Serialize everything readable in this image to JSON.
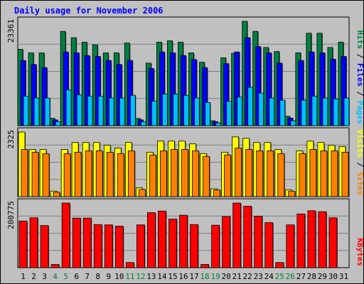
{
  "chart_data": [
    {
      "type": "bar",
      "title": "Daily usage for November 2006",
      "categories": [
        "1",
        "2",
        "3",
        "4",
        "5",
        "6",
        "7",
        "8",
        "9",
        "10",
        "11",
        "12",
        "13",
        "14",
        "15",
        "16",
        "17",
        "18",
        "19",
        "20",
        "21",
        "22",
        "23",
        "24",
        "25",
        "26",
        "27",
        "28",
        "29",
        "30",
        "31"
      ],
      "weekend_days": [
        "4",
        "5",
        "11",
        "12",
        "18",
        "19",
        "25",
        "26"
      ],
      "ylabel_right": [
        "Pages",
        "Files",
        "Hits"
      ],
      "ymax_label": "23361",
      "ylim": [
        0,
        23361
      ],
      "grid": true,
      "series": [
        {
          "name": "Hits",
          "color": "#008040",
          "values": [
            17100,
            16300,
            16300,
            1650,
            21100,
            19700,
            18700,
            18100,
            16300,
            16300,
            18500,
            1600,
            14000,
            18700,
            19000,
            18700,
            16300,
            14200,
            1100,
            15200,
            16200,
            23361,
            21100,
            17500,
            16600,
            2100,
            16300,
            20700,
            20700,
            17500,
            18700
          ]
        },
        {
          "name": "Files",
          "color": "#0000ff",
          "values": [
            14600,
            13700,
            13000,
            1300,
            16500,
            16300,
            15700,
            15500,
            14600,
            13700,
            14600,
            1300,
            12800,
            16500,
            16300,
            15700,
            14800,
            13000,
            900,
            13900,
            16500,
            19700,
            17700,
            16300,
            14000,
            1700,
            14600,
            16500,
            16300,
            14900,
            15500
          ]
        },
        {
          "name": "Pages",
          "color": "#00c0ff",
          "values": [
            6600,
            6200,
            6200,
            900,
            8000,
            6900,
            6600,
            6600,
            6200,
            6200,
            6800,
            900,
            5500,
            7100,
            7100,
            6800,
            6200,
            5200,
            600,
            5500,
            6400,
            8600,
            7300,
            6200,
            5700,
            1100,
            5700,
            6600,
            6200,
            6000,
            6200
          ]
        }
      ]
    },
    {
      "type": "bar",
      "categories": [
        "1",
        "2",
        "3",
        "4",
        "5",
        "6",
        "7",
        "8",
        "9",
        "10",
        "11",
        "12",
        "13",
        "14",
        "15",
        "16",
        "17",
        "18",
        "19",
        "20",
        "21",
        "22",
        "23",
        "24",
        "25",
        "26",
        "27",
        "28",
        "29",
        "30",
        "31"
      ],
      "ylabel_right": [
        "Sites",
        "Visits"
      ],
      "ymax_label": "2325",
      "ylim": [
        0,
        2325
      ],
      "grid": true,
      "series": [
        {
          "name": "Visits",
          "color": "#ffff00",
          "values": [
            2325,
            1700,
            1700,
            200,
            1700,
            1950,
            1950,
            1950,
            1850,
            1750,
            1950,
            320,
            1600,
            2000,
            2000,
            2000,
            1900,
            1550,
            280,
            1600,
            2150,
            2100,
            1950,
            1950,
            1700,
            250,
            1650,
            2000,
            1950,
            1850,
            1800
          ]
        },
        {
          "name": "Sites",
          "color": "#ff8000",
          "values": [
            1700,
            1600,
            1550,
            160,
            1550,
            1600,
            1650,
            1650,
            1600,
            1550,
            1650,
            260,
            1500,
            1650,
            1700,
            1700,
            1650,
            1450,
            240,
            1500,
            1750,
            1700,
            1650,
            1650,
            1550,
            200,
            1550,
            1700,
            1650,
            1650,
            1600
          ]
        }
      ]
    },
    {
      "type": "bar",
      "categories": [
        "1",
        "2",
        "3",
        "4",
        "5",
        "6",
        "7",
        "8",
        "9",
        "10",
        "11",
        "12",
        "13",
        "14",
        "15",
        "16",
        "17",
        "18",
        "19",
        "20",
        "21",
        "22",
        "23",
        "24",
        "25",
        "26",
        "27",
        "28",
        "29",
        "30",
        "31"
      ],
      "ylabel_right": [
        "KBytes"
      ],
      "ymax_label": "200775",
      "ylim": [
        0,
        200775
      ],
      "grid": true,
      "series": [
        {
          "name": "KBytes",
          "color": "#ff0000",
          "values": [
            145000,
            155000,
            131000,
            10000,
            200775,
            154000,
            154000,
            134000,
            133000,
            129000,
            16000,
            133000,
            171000,
            176000,
            151000,
            163000,
            134000,
            10000,
            132000,
            159000,
            200775,
            191000,
            160000,
            140000,
            16000,
            133000,
            167000,
            177000,
            174000,
            155000,
            0
          ]
        }
      ]
    }
  ],
  "colors": {
    "background": "#c0c0c0",
    "title": "#0000ff",
    "weekday_label": "#000000",
    "weekend_label": "#008040",
    "grid": "#808080"
  }
}
